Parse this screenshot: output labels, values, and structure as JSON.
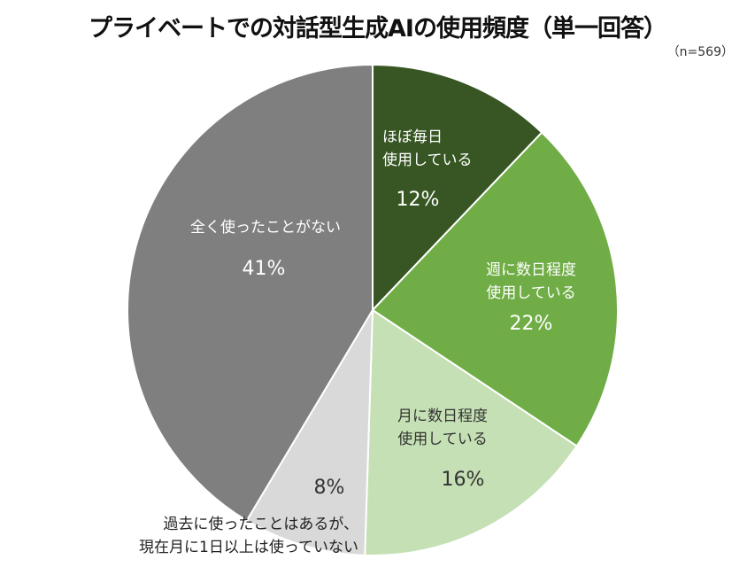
{
  "chart_data": {
    "type": "pie",
    "title": "プライベートでの対話型生成AIの使用頻度（単一回答）",
    "note": "（n=569）",
    "start": "top",
    "direction": "clockwise",
    "slices": [
      {
        "label": [
          "ほぼ毎日",
          "使用している"
        ],
        "value": 12,
        "value_label": "12%",
        "color": "#375623",
        "text_color": "#ffffff"
      },
      {
        "label": [
          "週に数日程度",
          "使用している"
        ],
        "value": 22,
        "value_label": "22%",
        "color": "#70AD47",
        "text_color": "#ffffff"
      },
      {
        "label": [
          "月に数日程度",
          "使用している"
        ],
        "value": 16,
        "value_label": "16%",
        "color": "#C5E0B4",
        "text_color": "#333333"
      },
      {
        "label": [
          "過去に使ったことはあるが、",
          "現在月に1日以上は使っていない"
        ],
        "value": 8,
        "value_label": "8%",
        "color": "#D9D9D9",
        "text_color": "#333333"
      },
      {
        "label": [
          "全く使ったことがない"
        ],
        "value": 41,
        "value_label": "41%",
        "color": "#7F7F7F",
        "text_color": "#ffffff"
      }
    ]
  }
}
